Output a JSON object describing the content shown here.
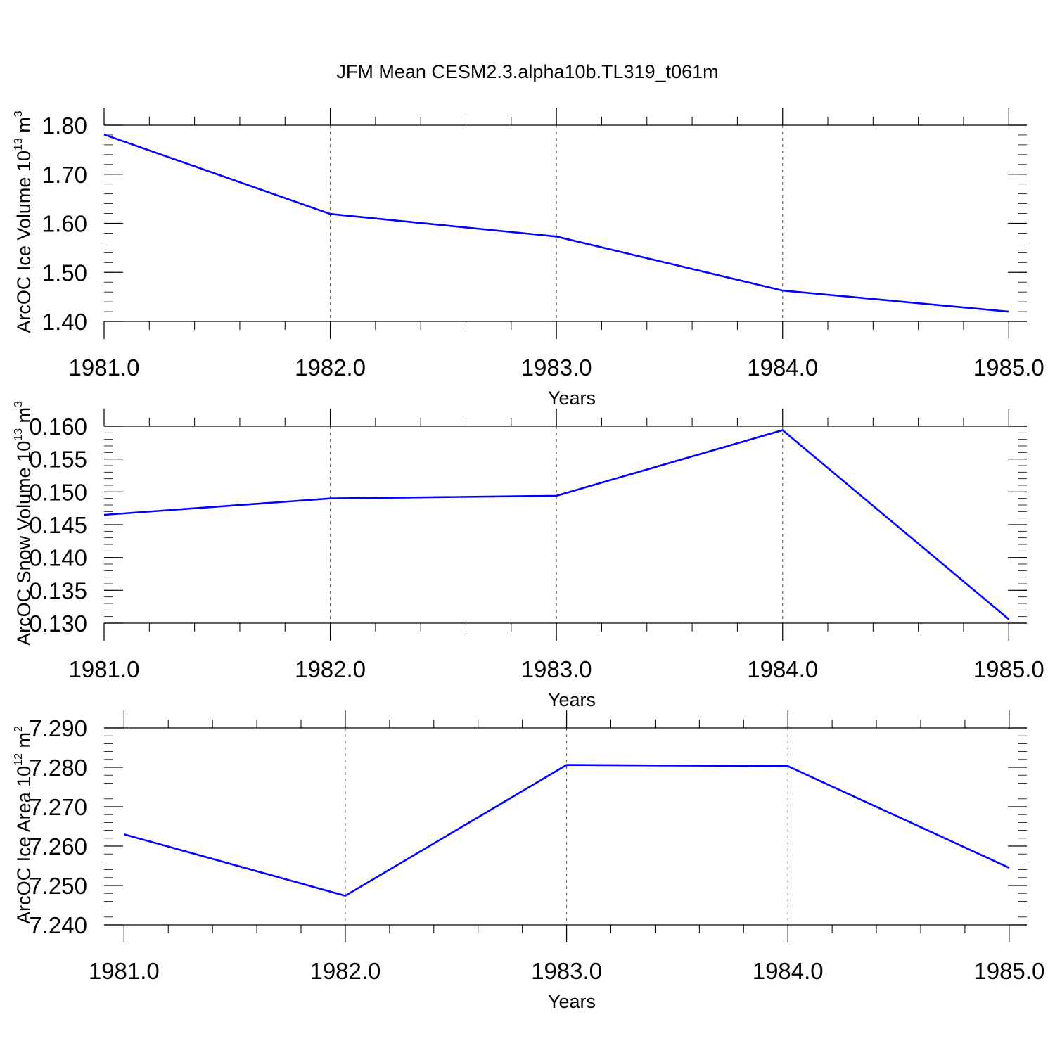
{
  "title": "JFM Mean CESM2.3.alpha10b.TL319_t061m",
  "colors": {
    "line": "#0000ff",
    "axis": "#000000",
    "grid": "#555555"
  },
  "chart_data": [
    {
      "type": "line",
      "ylabel": {
        "prefix": "ArcOC Ice Volume 10",
        "exponent": "13",
        "unit": " m",
        "unit_exponent": "3"
      },
      "xlabel": "Years",
      "x": [
        1981,
        1982,
        1983,
        1984,
        1985
      ],
      "xlim": [
        1981,
        1985.08
      ],
      "xticks": [
        1981,
        1982,
        1983,
        1984,
        1985
      ],
      "xtick_labels": [
        "1981.0",
        "1982.0",
        "1983.0",
        "1984.0",
        "1985.0"
      ],
      "ylim": [
        1.4,
        1.8
      ],
      "yticks": [
        1.4,
        1.5,
        1.6,
        1.7,
        1.8
      ],
      "ytick_labels": [
        "1.40",
        "1.50",
        "1.60",
        "1.70",
        "1.80"
      ],
      "y_minor_step": 0.02,
      "series": [
        {
          "values": [
            1.781,
            1.619,
            1.573,
            1.463,
            1.42
          ]
        }
      ],
      "grid": "x-dashed"
    },
    {
      "type": "line",
      "ylabel": {
        "prefix": "ArcOC Snow Volume 10",
        "exponent": "13",
        "unit": " m",
        "unit_exponent": "3"
      },
      "xlabel": "Years",
      "x": [
        1981,
        1982,
        1983,
        1984,
        1985
      ],
      "xlim": [
        1981,
        1985.08
      ],
      "xticks": [
        1981,
        1982,
        1983,
        1984,
        1985
      ],
      "xtick_labels": [
        "1981.0",
        "1982.0",
        "1983.0",
        "1984.0",
        "1985.0"
      ],
      "ylim": [
        0.13,
        0.16
      ],
      "yticks": [
        0.13,
        0.135,
        0.14,
        0.145,
        0.15,
        0.155,
        0.16
      ],
      "ytick_labels": [
        "0.130",
        "0.135",
        "0.140",
        "0.145",
        "0.150",
        "0.155",
        "0.160"
      ],
      "y_minor_step": 0.001,
      "series": [
        {
          "values": [
            0.1465,
            0.149,
            0.1494,
            0.1594,
            0.1306
          ]
        }
      ],
      "grid": "x-dashed"
    },
    {
      "type": "line",
      "ylabel": {
        "prefix": "ArcOC Ice Area 10",
        "exponent": "12",
        "unit": " m",
        "unit_exponent": "2"
      },
      "xlabel": "Years",
      "x": [
        1981,
        1982,
        1983,
        1984,
        1985
      ],
      "xlim": [
        1980.91,
        1985.08
      ],
      "xticks": [
        1981,
        1982,
        1983,
        1984,
        1985
      ],
      "xtick_labels": [
        "1981.0",
        "1982.0",
        "1983.0",
        "1984.0",
        "1985.0"
      ],
      "ylim": [
        7.24,
        7.29
      ],
      "yticks": [
        7.24,
        7.25,
        7.26,
        7.27,
        7.28,
        7.29
      ],
      "ytick_labels": [
        "7.240",
        "7.250",
        "7.260",
        "7.270",
        "7.280",
        "7.290"
      ],
      "y_minor_step": 0.002,
      "series": [
        {
          "values": [
            7.263,
            7.2474,
            7.2806,
            7.2803,
            7.2545
          ]
        }
      ],
      "grid": "x-dashed"
    }
  ]
}
